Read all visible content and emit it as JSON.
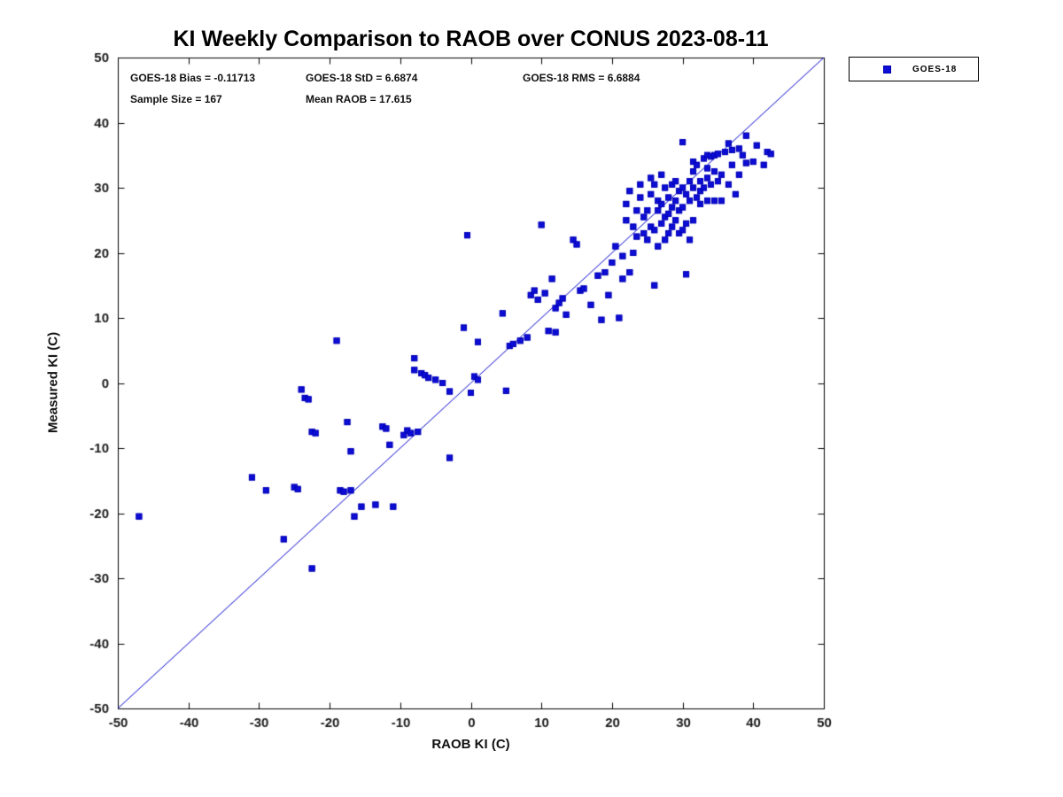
{
  "chart_data": {
    "type": "scatter",
    "title": "KI Weekly Comparison to RAOB over CONUS 2023-08-11",
    "xlabel": "RAOB KI (C)",
    "ylabel": "Measured KI (C)",
    "xlim": [
      -50,
      50
    ],
    "ylim": [
      -50,
      50
    ],
    "xticks": [
      -50,
      -40,
      -30,
      -20,
      -10,
      0,
      10,
      20,
      30,
      40,
      50
    ],
    "yticks": [
      -50,
      -40,
      -30,
      -20,
      -10,
      0,
      10,
      20,
      30,
      40,
      50
    ],
    "grid": false,
    "legend": {
      "label": "GOES-18",
      "position": "top-right-outside"
    },
    "annotations": {
      "bias": "GOES-18 Bias = -0.11713",
      "std": "GOES-18 StD = 6.6874",
      "rms": "GOES-18 RMS = 6.6884",
      "sample_size": "Sample Size = 167",
      "mean_raob": "Mean RAOB = 17.615"
    },
    "reference_line": {
      "from": [
        -50,
        -50
      ],
      "to": [
        50,
        50
      ],
      "color": "#0000cc",
      "width": 1
    },
    "marker": {
      "shape": "square",
      "color": "#0d0dd6",
      "edge": "#0000b4",
      "size": 7
    },
    "series": [
      {
        "name": "GOES-18",
        "points": [
          [
            -47,
            -20.5
          ],
          [
            -31,
            -14.5
          ],
          [
            -29,
            -16.5
          ],
          [
            -26.5,
            -24
          ],
          [
            -25,
            -16
          ],
          [
            -24.5,
            -16.3
          ],
          [
            -24,
            -1
          ],
          [
            -23.5,
            -2.3
          ],
          [
            -23,
            -2.5
          ],
          [
            -22.5,
            -7.5
          ],
          [
            -22.5,
            -28.5
          ],
          [
            -22,
            -7.7
          ],
          [
            -19,
            6.5
          ],
          [
            -18.5,
            -16.5
          ],
          [
            -18,
            -16.7
          ],
          [
            -17.5,
            -6
          ],
          [
            -17,
            -10.5
          ],
          [
            -17,
            -16.5
          ],
          [
            -16.5,
            -20.5
          ],
          [
            -15.5,
            -19
          ],
          [
            -13.5,
            -18.7
          ],
          [
            -12.5,
            -6.7
          ],
          [
            -12,
            -7
          ],
          [
            -11.5,
            -9.5
          ],
          [
            -11,
            -19
          ],
          [
            -9.5,
            -8
          ],
          [
            -9,
            -7.3
          ],
          [
            -8.5,
            -7.7
          ],
          [
            -8,
            2
          ],
          [
            -8,
            3.8
          ],
          [
            -7.5,
            -7.5
          ],
          [
            -7,
            1.5
          ],
          [
            -6.5,
            1.2
          ],
          [
            -6,
            0.8
          ],
          [
            -5,
            0.5
          ],
          [
            -4,
            0
          ],
          [
            -3,
            -1.3
          ],
          [
            -3,
            -11.5
          ],
          [
            -1,
            8.5
          ],
          [
            -0.5,
            22.7
          ],
          [
            0,
            -1.5
          ],
          [
            0.5,
            1
          ],
          [
            1,
            6.3
          ],
          [
            1,
            0.5
          ],
          [
            4.5,
            10.7
          ],
          [
            5,
            -1.2
          ],
          [
            5.5,
            5.7
          ],
          [
            6,
            6
          ],
          [
            7,
            6.5
          ],
          [
            8,
            7
          ],
          [
            8.5,
            13.5
          ],
          [
            9,
            14.2
          ],
          [
            9.5,
            12.8
          ],
          [
            10,
            24.3
          ],
          [
            10.5,
            13.8
          ],
          [
            11,
            8
          ],
          [
            11.5,
            16
          ],
          [
            12,
            7.8
          ],
          [
            12,
            11.5
          ],
          [
            12.5,
            12.3
          ],
          [
            13,
            13
          ],
          [
            13.5,
            10.5
          ],
          [
            14.5,
            22
          ],
          [
            15,
            21.3
          ],
          [
            15.5,
            14.2
          ],
          [
            16,
            14.5
          ],
          [
            17,
            12
          ],
          [
            18,
            16.5
          ],
          [
            18.5,
            9.7
          ],
          [
            19,
            17
          ],
          [
            19.5,
            13.5
          ],
          [
            20,
            18.5
          ],
          [
            20.5,
            21
          ],
          [
            21,
            10
          ],
          [
            21.5,
            16
          ],
          [
            21.5,
            19.5
          ],
          [
            22,
            25
          ],
          [
            22,
            27.5
          ],
          [
            22.5,
            17
          ],
          [
            22.5,
            29.5
          ],
          [
            23,
            20
          ],
          [
            23,
            24
          ],
          [
            23.5,
            22.5
          ],
          [
            23.5,
            26.5
          ],
          [
            24,
            28.5
          ],
          [
            24,
            30.5
          ],
          [
            24.5,
            23
          ],
          [
            24.5,
            25.5
          ],
          [
            25,
            22
          ],
          [
            25,
            26.5
          ],
          [
            25.5,
            24
          ],
          [
            25.5,
            29
          ],
          [
            25.5,
            31.5
          ],
          [
            26,
            15
          ],
          [
            26,
            23.5
          ],
          [
            26,
            30.5
          ],
          [
            26.5,
            21
          ],
          [
            26.5,
            26.5
          ],
          [
            26.5,
            28
          ],
          [
            27,
            24.5
          ],
          [
            27,
            27.5
          ],
          [
            27,
            32
          ],
          [
            27.5,
            22
          ],
          [
            27.5,
            25.5
          ],
          [
            27.5,
            30
          ],
          [
            28,
            23
          ],
          [
            28,
            26
          ],
          [
            28,
            28.5
          ],
          [
            28.5,
            24
          ],
          [
            28.5,
            27
          ],
          [
            28.5,
            30.5
          ],
          [
            29,
            25
          ],
          [
            29,
            28
          ],
          [
            29,
            31
          ],
          [
            29.5,
            23
          ],
          [
            29.5,
            26.5
          ],
          [
            29.5,
            29.5
          ],
          [
            30,
            23.5
          ],
          [
            30,
            27
          ],
          [
            30,
            30
          ],
          [
            30,
            37
          ],
          [
            30.5,
            16.7
          ],
          [
            30.5,
            24.5
          ],
          [
            30.5,
            29
          ],
          [
            31,
            22
          ],
          [
            31,
            28
          ],
          [
            31,
            31
          ],
          [
            31.5,
            25
          ],
          [
            31.5,
            30
          ],
          [
            31.5,
            32.5
          ],
          [
            31.5,
            34
          ],
          [
            32,
            28.5
          ],
          [
            32,
            33.5
          ],
          [
            32.5,
            27.5
          ],
          [
            32.5,
            29.5
          ],
          [
            32.5,
            31
          ],
          [
            33,
            30
          ],
          [
            33,
            34.5
          ],
          [
            33.5,
            28
          ],
          [
            33.5,
            31.5
          ],
          [
            33.5,
            33
          ],
          [
            33.5,
            35
          ],
          [
            34,
            30.5
          ],
          [
            34,
            34.8
          ],
          [
            34.5,
            28
          ],
          [
            34.5,
            32.5
          ],
          [
            34.5,
            35
          ],
          [
            35,
            31
          ],
          [
            35,
            35.2
          ],
          [
            35.5,
            28
          ],
          [
            35.5,
            32
          ],
          [
            36,
            35.5
          ],
          [
            36.5,
            30.5
          ],
          [
            36.5,
            36.8
          ],
          [
            37,
            33.5
          ],
          [
            37,
            35.8
          ],
          [
            37.5,
            29
          ],
          [
            38,
            32
          ],
          [
            38,
            36
          ],
          [
            38.5,
            35
          ],
          [
            39,
            33.8
          ],
          [
            39,
            38
          ],
          [
            40,
            34
          ],
          [
            40.5,
            36.5
          ],
          [
            41.5,
            33.5
          ],
          [
            42,
            35.5
          ],
          [
            42.5,
            35.2
          ]
        ]
      }
    ]
  }
}
